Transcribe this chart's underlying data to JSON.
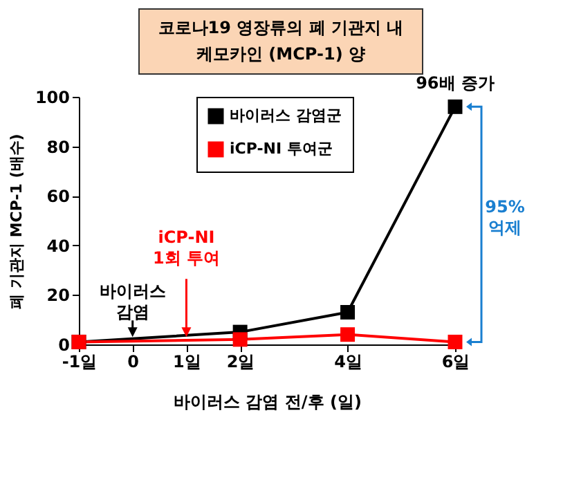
{
  "chart_data": {
    "type": "line",
    "title": "코로나19 영장류의 폐 기관지 내\n케모카인 (MCP-1) 양",
    "xlabel": "바이러스 감염 전/후 (일)",
    "ylabel": "폐 기관지 MCP-1 (배수)",
    "x": [
      -1,
      2,
      4,
      6
    ],
    "series": [
      {
        "name": "바이러스 감염군",
        "color": "#000000",
        "values": [
          1,
          5,
          13,
          96
        ]
      },
      {
        "name": "iCP-NI 투여군",
        "color": "#ff0000",
        "values": [
          1,
          2,
          4,
          1
        ]
      }
    ],
    "xlim": [
      -1,
      6
    ],
    "xticks": [
      {
        "value": -1,
        "label": "-1일"
      },
      0,
      {
        "value": 1,
        "label": "1일"
      },
      {
        "value": 2,
        "label": "2일"
      },
      {
        "value": 4,
        "label": "4일"
      },
      {
        "value": 6,
        "label": "6일"
      }
    ],
    "ylim": [
      0,
      100
    ],
    "yticks": [
      0,
      20,
      40,
      60,
      80,
      100
    ],
    "grid": false,
    "legend": "top",
    "marker": "square",
    "line_style": "solid",
    "annotations": [
      {
        "text": "96배 증가",
        "x": 6,
        "y": 96
      },
      {
        "text": "바이러스\n감염",
        "x": 0,
        "y": 3
      },
      {
        "text": "iCP-NI\n1회 투여",
        "x": 1,
        "y": 3
      },
      "95%\n억제"
    ]
  }
}
